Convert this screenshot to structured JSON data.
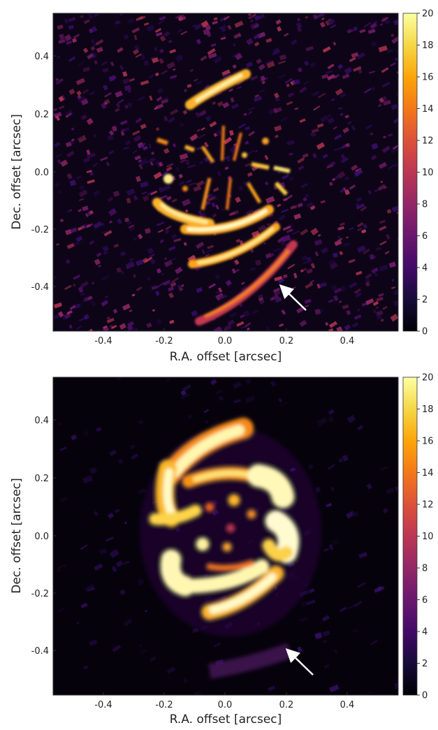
{
  "panels": [
    {
      "id": "top",
      "xlabel": "R.A. offset [arcsec]",
      "ylabel": "Dec. offset [arcsec]",
      "xticks": [
        "-0.4",
        "-0.2",
        "0.0",
        "0.2",
        "0.4"
      ],
      "yticks": [
        "0.4",
        "0.2",
        "0.0",
        "-0.2",
        "-0.4"
      ],
      "colorbar_ticks": [
        "20",
        "18",
        "16",
        "14",
        "12",
        "10",
        "8",
        "6",
        "4",
        "2",
        "0"
      ],
      "colorbar_range": [
        0,
        20
      ],
      "colormap": "inferno"
    },
    {
      "id": "bottom",
      "xlabel": "R.A. offset [arcsec]",
      "ylabel": "Dec. offset [arcsec]",
      "xticks": [
        "-0.4",
        "-0.2",
        "0.0",
        "0.2",
        "0.4"
      ],
      "yticks": [
        "0.4",
        "0.2",
        "0.0",
        "-0.2",
        "-0.4"
      ],
      "colorbar_ticks": [
        "20",
        "18",
        "16",
        "14",
        "12",
        "10",
        "8",
        "6",
        "4",
        "2",
        "0"
      ],
      "colorbar_range": [
        0,
        20
      ],
      "colormap": "inferno"
    }
  ],
  "colors": {
    "background": "#0d0418",
    "arrow": "#ffffff"
  }
}
